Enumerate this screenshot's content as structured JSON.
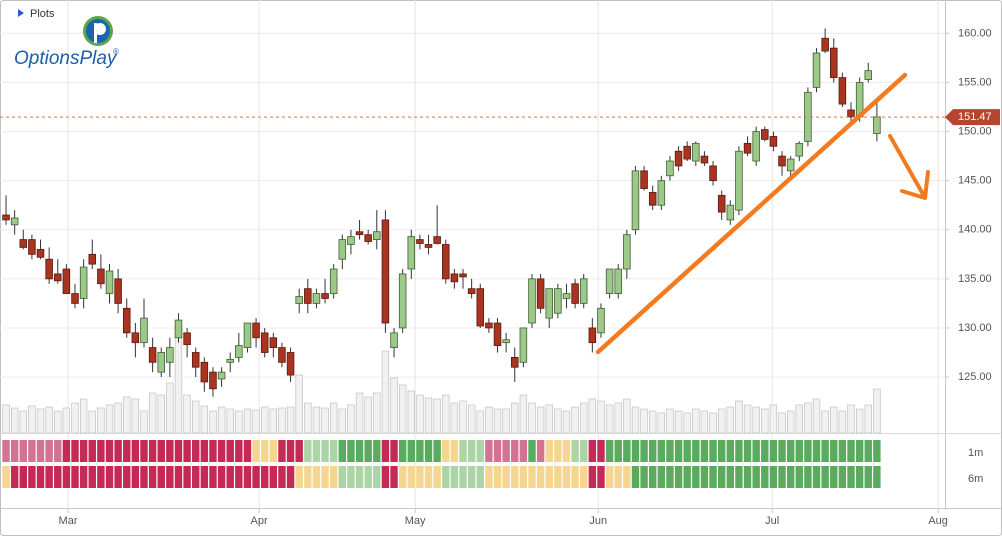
{
  "header": {
    "menu": "Plots",
    "brand": "OptionsPlay",
    "brand_mark": "®"
  },
  "chart_data": {
    "type": "candlestick",
    "x": [
      0,
      1,
      2,
      3,
      4,
      5,
      6,
      7,
      8,
      9,
      10,
      11,
      12,
      13,
      14,
      15,
      16,
      17,
      18,
      19,
      20,
      21,
      22,
      23,
      24,
      25,
      26,
      27,
      28,
      29,
      30,
      31,
      32,
      33,
      34,
      35,
      36,
      37,
      38,
      39,
      40,
      41,
      42,
      43,
      44,
      45,
      46,
      47,
      48,
      49,
      50,
      51,
      52,
      53,
      54,
      55,
      56,
      57,
      58,
      59,
      60,
      61,
      62,
      63,
      64,
      65,
      66,
      67,
      68,
      69,
      70,
      71,
      72,
      73,
      74,
      75,
      76,
      77,
      78,
      79,
      80,
      81,
      82,
      83,
      84,
      85,
      86,
      87,
      88,
      89,
      90,
      91,
      92,
      93,
      94,
      95,
      96,
      97,
      98,
      99,
      100,
      101
    ],
    "candles": [
      [
        141.5,
        143.5,
        140.5,
        141
      ],
      [
        140.5,
        142,
        139.5,
        141.2
      ],
      [
        139,
        140,
        138,
        138.2
      ],
      [
        139,
        139.5,
        137,
        137.5
      ],
      [
        138,
        139,
        137,
        137.2
      ],
      [
        137,
        138.2,
        134.5,
        135
      ],
      [
        135.5,
        137,
        134.5,
        134.8
      ],
      [
        136,
        136.5,
        133.5,
        133.5
      ],
      [
        133.5,
        134.5,
        132,
        132.5
      ],
      [
        133,
        137,
        132,
        136.2
      ],
      [
        137.5,
        139,
        136,
        136.5
      ],
      [
        136,
        137.5,
        134,
        134.5
      ],
      [
        133.5,
        136.5,
        132.5,
        135.8
      ],
      [
        135,
        136,
        131.5,
        132.5
      ],
      [
        132,
        133,
        129,
        129.5
      ],
      [
        129.5,
        130.5,
        127,
        128.5
      ],
      [
        128.5,
        133,
        128,
        131
      ],
      [
        128,
        129,
        125.5,
        126.5
      ],
      [
        125.5,
        128,
        125,
        127.5
      ],
      [
        126.5,
        129,
        125,
        128
      ],
      [
        129,
        131.5,
        128.5,
        130.8
      ],
      [
        129.5,
        130,
        127,
        128.3
      ],
      [
        127.5,
        128,
        125,
        126
      ],
      [
        126.5,
        127,
        123.5,
        124.5
      ],
      [
        125.5,
        126,
        123,
        123.8
      ],
      [
        124.8,
        126,
        124,
        125.5
      ],
      [
        126.5,
        127.5,
        125.5,
        126.8
      ],
      [
        127,
        129.5,
        126.5,
        128.2
      ],
      [
        128,
        130.5,
        127.5,
        130.5
      ],
      [
        130.5,
        131,
        128,
        129
      ],
      [
        129.5,
        130,
        127,
        127.5
      ],
      [
        129,
        129.5,
        127,
        128
      ],
      [
        128,
        128.5,
        126,
        126.5
      ],
      [
        127.5,
        128,
        124.5,
        125.2
      ],
      [
        132.5,
        134,
        131.5,
        133.2
      ],
      [
        134,
        135,
        131.5,
        132.5
      ],
      [
        132.5,
        134,
        132,
        133.5
      ],
      [
        133.5,
        135,
        132.5,
        133
      ],
      [
        133.5,
        136.5,
        133,
        136
      ],
      [
        137,
        139.5,
        136,
        139
      ],
      [
        138.5,
        140,
        137.5,
        139.3
      ],
      [
        139.8,
        141,
        139,
        139.5
      ],
      [
        139.5,
        140,
        138.5,
        138.8
      ],
      [
        139,
        142,
        138,
        139.8
      ],
      [
        141,
        142,
        129.5,
        130.5
      ],
      [
        128,
        130,
        127,
        129.5
      ],
      [
        130,
        136,
        129.5,
        135.5
      ],
      [
        136,
        140,
        135,
        139.3
      ],
      [
        139,
        139.5,
        138,
        138.6
      ],
      [
        138.5,
        139.5,
        137.5,
        138.2
      ],
      [
        139.3,
        142.5,
        138.5,
        138.6
      ],
      [
        138.5,
        139,
        134.5,
        135
      ],
      [
        135.5,
        136,
        134,
        134.7
      ],
      [
        135.5,
        136,
        134,
        135.2
      ],
      [
        134,
        135,
        133,
        133.5
      ],
      [
        134,
        134.5,
        130,
        130.2
      ],
      [
        130.5,
        131,
        129.5,
        130
      ],
      [
        130.5,
        131,
        127.5,
        128.2
      ],
      [
        128.5,
        129.5,
        127.5,
        128.8
      ],
      [
        127,
        128,
        124.5,
        126
      ],
      [
        126.5,
        130,
        126,
        130
      ],
      [
        130.5,
        135.5,
        130,
        135
      ],
      [
        135,
        135.5,
        131.5,
        132
      ],
      [
        131,
        134,
        130,
        134
      ],
      [
        131.5,
        134.5,
        131,
        134
      ],
      [
        133,
        134.5,
        132,
        133.5
      ],
      [
        134.5,
        135,
        132,
        132.5
      ],
      [
        132.5,
        135.5,
        132,
        135
      ],
      [
        130,
        131,
        127.5,
        128.5
      ],
      [
        129.5,
        132.5,
        129,
        132
      ],
      [
        133.5,
        136,
        133,
        136
      ],
      [
        133.5,
        136.5,
        133,
        136
      ],
      [
        136,
        140,
        135,
        139.5
      ],
      [
        140,
        146.5,
        139.5,
        146
      ],
      [
        146,
        146.5,
        144,
        144.2
      ],
      [
        143.8,
        144.5,
        142,
        142.5
      ],
      [
        142.5,
        145.5,
        142,
        145
      ],
      [
        145.5,
        147.5,
        145,
        147
      ],
      [
        148,
        148.5,
        146,
        146.5
      ],
      [
        148.5,
        149,
        147,
        147.2
      ],
      [
        147,
        149,
        146.5,
        148.8
      ],
      [
        147.5,
        148,
        146.5,
        146.8
      ],
      [
        146.5,
        147,
        144.5,
        145
      ],
      [
        143.5,
        144,
        141,
        141.8
      ],
      [
        141,
        143,
        140.5,
        142.5
      ],
      [
        142,
        148.5,
        141.5,
        148
      ],
      [
        148.8,
        149.5,
        147.5,
        147.8
      ],
      [
        147,
        150.5,
        146.5,
        150
      ],
      [
        150.2,
        150.5,
        149,
        149.2
      ],
      [
        149.5,
        150,
        148,
        148.5
      ],
      [
        147.5,
        148,
        145.5,
        146.5
      ],
      [
        146,
        147.5,
        145,
        147.2
      ],
      [
        147.5,
        149,
        147,
        148.8
      ],
      [
        149,
        154.5,
        148.5,
        154
      ],
      [
        154.5,
        158.5,
        154,
        158
      ],
      [
        159.5,
        160.5,
        158,
        158.2
      ],
      [
        158.5,
        159.5,
        155,
        155.5
      ],
      [
        155.5,
        156,
        152.5,
        152.8
      ],
      [
        152.2,
        153,
        151,
        151.5
      ],
      [
        151.5,
        155.5,
        151,
        155
      ],
      [
        155.3,
        157,
        155,
        156.2
      ],
      [
        149.8,
        153,
        149,
        151.5
      ]
    ],
    "up_color": "#9cc88a",
    "down_color": "#a9341f",
    "volume": [
      28,
      25,
      22,
      27,
      24,
      26,
      22,
      25,
      30,
      34,
      22,
      25,
      28,
      30,
      36,
      34,
      22,
      40,
      38,
      50,
      108,
      38,
      32,
      27,
      22,
      26,
      24,
      22,
      24,
      23,
      26,
      24,
      25,
      26,
      58,
      30,
      26,
      25,
      30,
      24,
      28,
      40,
      36,
      40,
      82,
      55,
      48,
      42,
      38,
      35,
      34,
      38,
      30,
      32,
      28,
      22,
      26,
      24,
      24,
      30,
      38,
      30,
      26,
      28,
      24,
      22,
      26,
      30,
      34,
      32,
      28,
      30,
      34,
      26,
      24,
      22,
      20,
      24,
      22,
      20,
      24,
      22,
      20,
      24,
      26,
      32,
      28,
      26,
      24,
      28,
      20,
      22,
      28,
      30,
      34,
      22,
      26,
      22,
      28,
      24,
      28,
      44
    ],
    "volume_ylim": [
      0,
      120
    ],
    "last_price": 151.47,
    "xlim": [
      -0.7,
      108.9
    ],
    "xticks": [
      {
        "value": 7.19,
        "label": "Mar"
      },
      {
        "value": 29.35,
        "label": "Apr"
      },
      {
        "value": 47.45,
        "label": "May"
      },
      {
        "value": 68.68,
        "label": "Jun"
      },
      {
        "value": 88.86,
        "label": "Jul"
      },
      {
        "value": 108.1,
        "label": "Aug"
      }
    ],
    "ylim": [
      119.3,
      163.4
    ],
    "yticks": [
      {
        "value": 125,
        "label": "125.00"
      },
      {
        "value": 130,
        "label": "130.00"
      },
      {
        "value": 135,
        "label": "135.00"
      },
      {
        "value": 140,
        "label": "140.00"
      },
      {
        "value": 145,
        "label": "145.00"
      },
      {
        "value": 150,
        "label": "150.00"
      },
      {
        "value": 155,
        "label": "155.00"
      },
      {
        "value": 160,
        "label": "160.00"
      }
    ],
    "grid": true,
    "strips": [
      {
        "name": "1m",
        "cells": "PPPPPPPRRRRRRRRRRRRRRRRRRRRRRYYYRRRLLLLGGGGGRRGGGGGYYLLLPPPPPGPYYYLLRRGGGGGGGGGGGGGGGGGGGGGGGGGGGGGGGG"
      },
      {
        "name": "6m",
        "cells": "YRRRRRRRRRRRRRRRRRRRRRRRRRRRRRRRRRYYYYYLLLLLRRYYYYYLLLLLYYYYYYYYYYYYRRYYYGGGGGGGGGGGGGGGGGGGGGGGGGGGGG"
      }
    ],
    "strip_colors": {
      "P": "#d27391",
      "R": "#c42a55",
      "Y": "#f5d690",
      "L": "#acd5a6",
      "G": "#5aab5e"
    }
  }
}
